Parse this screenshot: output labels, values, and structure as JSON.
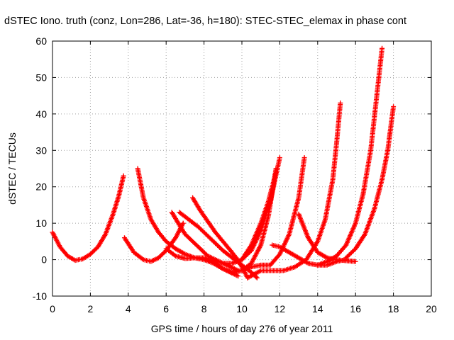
{
  "chart_data": {
    "type": "scatter",
    "title": "dSTEC Iono. truth (conz, Lon=286, Lat=-36, h=180): STEC-STEC_elemax in phase cont",
    "xlabel": "GPS time / hours of day 276 of year 2011",
    "ylabel": "dSTEC  / TECUs",
    "xlim": [
      0,
      20
    ],
    "ylim": [
      -10,
      60
    ],
    "xticks": [
      "0",
      "2",
      "4",
      "6",
      "8",
      "10",
      "12",
      "14",
      "16",
      "18",
      "20"
    ],
    "yticks": [
      "-10",
      "0",
      "10",
      "20",
      "30",
      "40",
      "50",
      "60"
    ],
    "grid": true,
    "marker": "plus",
    "color": "#ff0000",
    "series": [
      {
        "x": [
          0.0,
          0.4,
          0.8,
          1.2,
          1.6,
          2.0,
          2.4,
          2.8,
          3.2,
          3.5,
          3.75
        ],
        "y": [
          7.5,
          3.5,
          1.0,
          -0.2,
          0.2,
          1.5,
          3.5,
          7.0,
          12.5,
          17.5,
          23.0
        ]
      },
      {
        "x": [
          3.8,
          4.3,
          4.8,
          5.2,
          5.6,
          6.0,
          6.5,
          6.9
        ],
        "y": [
          6.0,
          2.0,
          0.0,
          -0.5,
          0.5,
          2.5,
          6.0,
          10.0
        ]
      },
      {
        "x": [
          4.5,
          4.8,
          5.2,
          5.6,
          6.0,
          6.5,
          7.0,
          7.5,
          8.0,
          8.5,
          9.0,
          9.4,
          9.8
        ],
        "y": [
          25.0,
          17.0,
          11.0,
          7.5,
          5.0,
          3.0,
          1.5,
          0.5,
          0.0,
          -1.0,
          -2.5,
          -3.5,
          -4.5
        ]
      },
      {
        "x": [
          6.3,
          6.7,
          7.0,
          7.4,
          7.8,
          8.2,
          8.6,
          9.0,
          9.4,
          9.8
        ],
        "y": [
          13.0,
          9.5,
          7.0,
          5.0,
          3.0,
          1.0,
          0.0,
          -1.0,
          -2.0,
          -3.0
        ]
      },
      {
        "x": [
          6.7,
          7.2,
          7.7,
          8.2,
          8.6,
          9.0,
          9.5,
          10.0,
          10.5,
          10.8
        ],
        "y": [
          13.0,
          11.0,
          9.0,
          6.5,
          4.5,
          2.5,
          0.5,
          -1.5,
          -3.5,
          -5.0
        ]
      },
      {
        "x": [
          7.4,
          7.8,
          8.2,
          8.6,
          9.0,
          9.4,
          9.7,
          10.0,
          10.3
        ],
        "y": [
          17.0,
          13.5,
          10.5,
          7.5,
          5.0,
          2.5,
          0.5,
          -2.0,
          -5.0
        ]
      },
      {
        "x": [
          6.0,
          6.5,
          7.0,
          7.5,
          8.0,
          8.5,
          9.0,
          9.5,
          10.0,
          10.5,
          11.0,
          11.4,
          11.8
        ],
        "y": [
          3.0,
          1.0,
          0.3,
          0.5,
          0.5,
          -0.5,
          -2.5,
          -3.5,
          -3.0,
          -1.0,
          4.0,
          12.0,
          25.0
        ]
      },
      {
        "x": [
          9.0,
          9.5,
          10.0,
          10.5,
          11.0,
          11.5,
          12.0
        ],
        "y": [
          -1.0,
          -1.0,
          0.0,
          2.5,
          8.0,
          16.0,
          28.0
        ]
      },
      {
        "x": [
          10.0,
          10.5,
          11.0,
          11.4,
          11.8
        ],
        "y": [
          0.0,
          4.0,
          10.0,
          16.0,
          24.0
        ]
      },
      {
        "x": [
          10.0,
          10.5,
          11.0,
          11.5,
          12.0,
          12.5,
          13.0,
          13.3
        ],
        "y": [
          -3.0,
          -2.0,
          -1.5,
          -1.5,
          1.5,
          7.0,
          17.0,
          28.0
        ]
      },
      {
        "x": [
          10.3,
          11.0,
          11.6,
          12.2,
          12.8,
          13.4,
          14.0,
          14.4,
          14.8,
          15.0,
          15.2
        ],
        "y": [
          -5.0,
          -3.0,
          -3.0,
          -3.0,
          -2.0,
          0.0,
          5.0,
          11.0,
          22.0,
          32.0,
          43.0
        ]
      },
      {
        "x": [
          11.6,
          12.0,
          12.5,
          13.0,
          13.5,
          14.0,
          14.5,
          15.0,
          15.5
        ],
        "y": [
          4.0,
          3.5,
          2.0,
          0.5,
          -1.0,
          -1.5,
          -1.5,
          -0.5,
          0.0
        ]
      },
      {
        "x": [
          13.0,
          13.5,
          14.0,
          14.5,
          15.0,
          15.5,
          16.0
        ],
        "y": [
          12.5,
          6.0,
          2.0,
          0.5,
          0.0,
          -0.3,
          -0.5
        ]
      },
      {
        "x": [
          14.0,
          14.5,
          15.0,
          15.5,
          16.0,
          16.4,
          16.8,
          17.1,
          17.4
        ],
        "y": [
          -1.5,
          -0.5,
          1.0,
          4.0,
          10.0,
          18.0,
          30.0,
          44.0,
          58.0
        ]
      },
      {
        "x": [
          15.5,
          16.0,
          16.5,
          17.0,
          17.4,
          17.7,
          18.0
        ],
        "y": [
          0.5,
          3.0,
          7.0,
          14.0,
          22.0,
          30.0,
          42.0
        ]
      }
    ]
  }
}
